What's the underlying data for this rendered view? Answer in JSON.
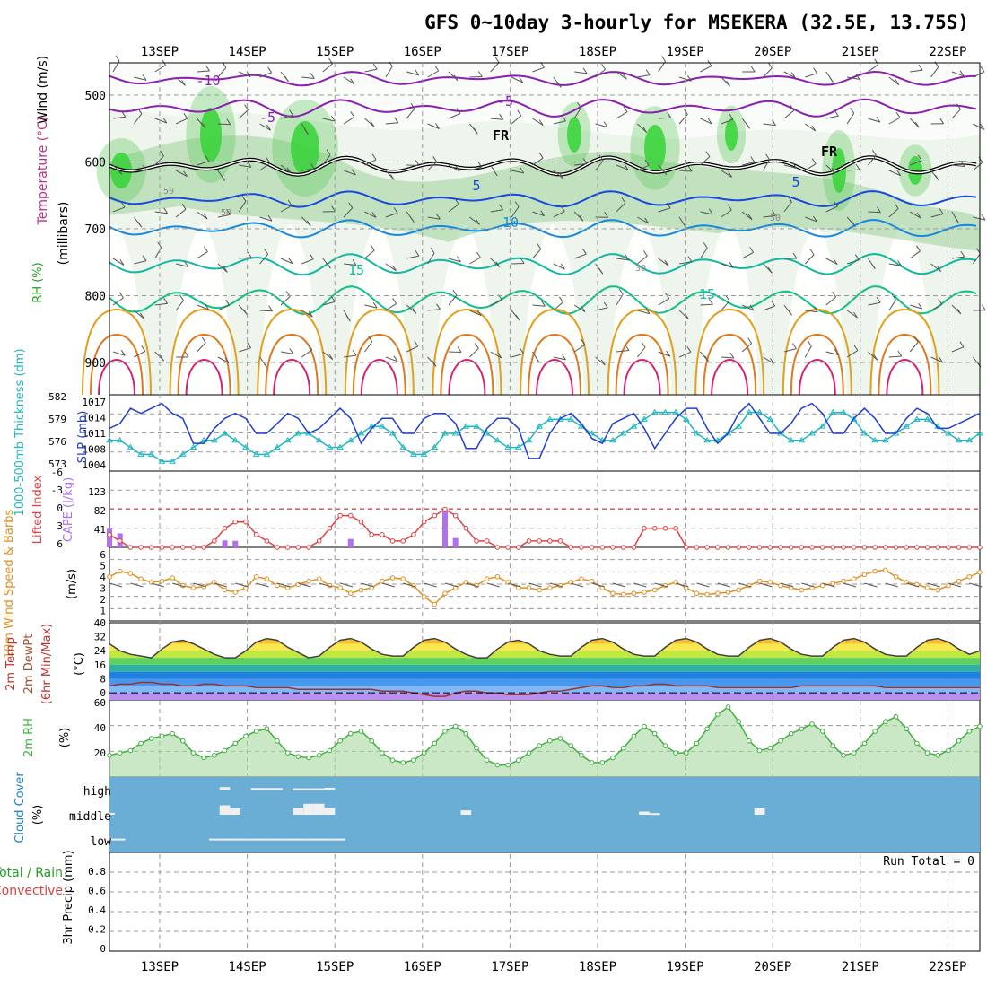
{
  "chart_data": {
    "type": "meteogram",
    "title": "GFS 0~10day 3-hourly for MSEKERA (32.5E, 13.75S)",
    "x_dates": [
      "13SEP",
      "14SEP",
      "15SEP",
      "16SEP",
      "17SEP",
      "18SEP",
      "19SEP",
      "20SEP",
      "21SEP",
      "22SEP"
    ],
    "colors": {
      "grid": "#999999",
      "blue_cloud": "#6aaed6",
      "slp": "#1f3fd0",
      "thick": "#20b8c0",
      "li": "#e04040",
      "cape": "#b070f0",
      "wind": "#e09020",
      "rh2m": "#40b040"
    },
    "upper_air": {
      "ylabel_wind": "Wind (m/s)",
      "ylabel_temp": "Temperature (°C)",
      "ylabel_rh": "RH (%)",
      "ylabel_p": "(millibars)",
      "p_ticks": [
        "500",
        "600",
        "700",
        "800",
        "900"
      ],
      "contour_labels": [
        "-10",
        "-5",
        "-5",
        "FR",
        "FR",
        "5",
        "5",
        "10",
        "15",
        "15",
        "50",
        "50",
        "50",
        "30"
      ]
    },
    "slp_panel": {
      "ylabel_thick": "1000-500mb Thickness (dm)",
      "ylabel_slp": "SLP (mb)",
      "thick_ticks": [
        "582",
        "579",
        "576",
        "573"
      ],
      "slp_ticks": [
        "1017",
        "1014",
        "1011",
        "1008",
        "1004"
      ],
      "slp_values": [
        1012,
        1013,
        1016,
        1015,
        1016,
        1017,
        1015,
        1014,
        1009,
        1009,
        1012,
        1014,
        1015,
        1014,
        1011,
        1011,
        1013,
        1015,
        1014,
        1011,
        1012,
        1014,
        1016,
        1014,
        1009,
        1012,
        1014,
        1014,
        1011,
        1011,
        1014,
        1015,
        1015,
        1013,
        1008,
        1008,
        1012,
        1014,
        1014,
        1012,
        1006,
        1006,
        1011,
        1014,
        1015,
        1013,
        1010,
        1009,
        1013,
        1014,
        1015,
        1012,
        1008,
        1011,
        1014,
        1016,
        1016,
        1012,
        1009,
        1011,
        1015,
        1017,
        1014,
        1011,
        1011,
        1013,
        1016,
        1017,
        1015,
        1011,
        1011,
        1014,
        1016,
        1014,
        1011,
        1011,
        1014,
        1016,
        1015,
        1012,
        1012,
        1013,
        1014,
        1015
      ],
      "thick_values": [
        576,
        576,
        575,
        574,
        574,
        573,
        573,
        574,
        575,
        576,
        576,
        577,
        576,
        575,
        574,
        574,
        575,
        576,
        577,
        577,
        576,
        575,
        575,
        576,
        577,
        578,
        578,
        577,
        575,
        574,
        574,
        575,
        577,
        577,
        578,
        578,
        577,
        576,
        575,
        575,
        576,
        578,
        579,
        579,
        579,
        578,
        577,
        576,
        576,
        577,
        578,
        579,
        580,
        580,
        580,
        579,
        577,
        576,
        576,
        577,
        578,
        580,
        580,
        579,
        577,
        576,
        576,
        577,
        578,
        580,
        580,
        579,
        577,
        576,
        576,
        577,
        578,
        579,
        579,
        578,
        577,
        576,
        576,
        577
      ]
    },
    "cape_panel": {
      "ylabel_li": "Lifted Index",
      "ylabel_cape": "CAPE (J/kg)",
      "li_ticks": [
        "-6",
        "-3",
        "0",
        "3",
        "6"
      ],
      "cape_ticks": [
        "123",
        "82",
        "41"
      ],
      "cape_values": [
        40,
        30,
        0,
        0,
        0,
        0,
        0,
        0,
        0,
        0,
        0,
        15,
        14,
        0,
        0,
        0,
        0,
        0,
        0,
        0,
        0,
        0,
        0,
        18,
        0,
        0,
        0,
        0,
        0,
        0,
        0,
        0,
        80,
        20,
        0,
        0,
        0,
        0,
        0,
        0,
        0,
        0,
        0,
        0,
        0,
        0,
        0,
        0,
        0,
        0,
        0,
        0,
        0,
        0,
        0,
        0,
        0,
        0,
        0,
        0,
        0,
        0,
        0,
        0,
        0,
        0,
        0,
        0,
        0,
        0,
        0,
        0,
        0,
        0,
        0,
        0,
        0,
        0,
        0,
        0,
        0,
        0,
        0,
        0
      ],
      "li_values": [
        4,
        5,
        6,
        6,
        6,
        6,
        6,
        6,
        6,
        6,
        5,
        3,
        2,
        2,
        4,
        5,
        6,
        6,
        6,
        6,
        5,
        3,
        1,
        1,
        2,
        4,
        4,
        5,
        5,
        4,
        2,
        1,
        0,
        1,
        3,
        5,
        5,
        6,
        6,
        6,
        5,
        5,
        5,
        5,
        6,
        6,
        6,
        6,
        6,
        6,
        6,
        3,
        3,
        3,
        3,
        6,
        6,
        6,
        6,
        6,
        6,
        6,
        6,
        6,
        6,
        6,
        6,
        6,
        6,
        6,
        6,
        6,
        6,
        6,
        6,
        6,
        6,
        6,
        6,
        6,
        6,
        6,
        6,
        6
      ]
    },
    "wind_panel": {
      "ylabel": "10m Wind Speed & Barbs",
      "yunit": "(m/s)",
      "ticks": [
        "6",
        "5",
        "4",
        "3",
        "2",
        "1"
      ],
      "values": [
        4,
        4.5,
        4.3,
        3.8,
        3.5,
        3.6,
        3.9,
        3.2,
        3.0,
        3.1,
        3.5,
        2.8,
        2.6,
        3.0,
        4.0,
        3.8,
        3.2,
        3.0,
        3.3,
        3.6,
        3.8,
        3.2,
        3.0,
        2.5,
        2.8,
        3.0,
        3.6,
        3.9,
        3.8,
        3.2,
        2.2,
        1.5,
        2.5,
        3.0,
        3.5,
        3.2,
        3.8,
        4.0,
        3.5,
        3.0,
        3.0,
        2.8,
        3.0,
        3.2,
        3.5,
        3.8,
        3.6,
        3.0,
        2.5,
        2.4,
        2.5,
        2.6,
        2.8,
        3.2,
        3.5,
        3.0,
        2.5,
        2.4,
        2.5,
        2.6,
        2.8,
        3.2,
        3.6,
        3.5,
        3.2,
        3.0,
        2.8,
        3.0,
        3.2,
        3.4,
        3.6,
        3.8,
        4.2,
        4.5,
        4.6,
        4.0,
        3.5,
        3.3,
        3.0,
        2.8,
        3.2,
        3.6,
        4.0,
        4.4
      ]
    },
    "temp_panel": {
      "ylabel_1": "2m Temp",
      "ylabel_2": "2m DewPt",
      "ylabel_3": "(6hr Min/Max)",
      "yunit": "(°C)",
      "ticks": [
        "40",
        "32",
        "24",
        "16",
        "8",
        "0"
      ],
      "temp_values": [
        28,
        24,
        22,
        21,
        20,
        25,
        29,
        30,
        28,
        25,
        22,
        20,
        20,
        24,
        29,
        31,
        30,
        26,
        23,
        20,
        21,
        26,
        30,
        31,
        29,
        25,
        22,
        21,
        21,
        26,
        30,
        31,
        29,
        25,
        22,
        20,
        20,
        25,
        29,
        30,
        28,
        24,
        22,
        21,
        21,
        26,
        30,
        31,
        29,
        25,
        22,
        21,
        21,
        26,
        30,
        31,
        29,
        25,
        22,
        21,
        21,
        26,
        30,
        31,
        29,
        25,
        22,
        21,
        21,
        26,
        30,
        31,
        29,
        25,
        22,
        21,
        21,
        26,
        30,
        31,
        29,
        25,
        22,
        24
      ],
      "dew_values": [
        4,
        5,
        5,
        6,
        6,
        5,
        5,
        4,
        4,
        5,
        5,
        4,
        4,
        4,
        3,
        3,
        3,
        3,
        2,
        2,
        2,
        2,
        2,
        2,
        2,
        2,
        1,
        1,
        1,
        0,
        -1,
        -2,
        -2,
        0,
        1,
        1,
        0,
        0,
        -1,
        -1,
        -1,
        0,
        1,
        1,
        2,
        3,
        4,
        4,
        3,
        3,
        4,
        4,
        5,
        5,
        4,
        4,
        4,
        4,
        3,
        3,
        3,
        3,
        3,
        3,
        3,
        3,
        4,
        4,
        4,
        4,
        4,
        4,
        4,
        4,
        3,
        3,
        3,
        3,
        3,
        3,
        3,
        3,
        3,
        3
      ]
    },
    "rh_panel": {
      "ylabel": "2m RH",
      "yunit": "(%)",
      "ticks": [
        "60",
        "40",
        "20"
      ],
      "values": [
        18,
        20,
        22,
        28,
        32,
        34,
        36,
        30,
        20,
        16,
        18,
        22,
        28,
        34,
        38,
        40,
        30,
        20,
        17,
        16,
        18,
        22,
        30,
        36,
        38,
        30,
        20,
        14,
        12,
        14,
        20,
        28,
        38,
        42,
        36,
        24,
        14,
        10,
        10,
        14,
        20,
        26,
        30,
        32,
        26,
        18,
        12,
        12,
        16,
        24,
        34,
        42,
        36,
        26,
        20,
        20,
        28,
        40,
        52,
        58,
        46,
        30,
        22,
        24,
        30,
        36,
        40,
        44,
        38,
        26,
        18,
        20,
        28,
        38,
        46,
        50,
        40,
        28,
        20,
        18,
        22,
        30,
        38,
        42
      ]
    },
    "cloud_panel": {
      "ylabel": "Cloud Cover",
      "yunit": "(%)",
      "ticks": [
        "high",
        "middle",
        "low"
      ],
      "high_values": [
        0,
        0,
        0,
        0,
        0,
        0,
        0,
        0,
        0,
        0,
        0,
        8,
        0,
        0,
        5,
        5,
        5,
        0,
        4,
        4,
        4,
        6,
        0,
        0,
        0,
        0,
        0,
        0,
        0,
        0,
        0,
        0,
        0,
        0,
        0,
        0,
        0,
        0,
        0,
        0,
        0,
        0,
        0,
        0,
        0,
        0,
        0,
        0,
        0,
        0,
        0,
        0,
        0,
        0,
        0,
        0,
        0,
        0,
        0,
        0,
        0,
        0,
        0,
        0,
        0,
        0,
        0,
        0,
        0,
        0,
        0,
        0,
        0,
        0,
        0,
        0,
        0,
        0,
        0,
        0,
        0,
        0,
        0,
        0
      ],
      "mid_values": [
        6,
        0,
        0,
        0,
        0,
        0,
        0,
        0,
        0,
        0,
        0,
        30,
        20,
        0,
        0,
        0,
        0,
        0,
        22,
        35,
        35,
        22,
        0,
        0,
        0,
        0,
        0,
        0,
        0,
        0,
        0,
        0,
        0,
        0,
        14,
        0,
        0,
        0,
        0,
        0,
        0,
        0,
        0,
        0,
        0,
        0,
        0,
        0,
        0,
        0,
        0,
        10,
        5,
        0,
        0,
        0,
        0,
        0,
        0,
        0,
        0,
        0,
        20,
        0,
        0,
        0,
        0,
        0,
        0,
        0,
        0,
        0,
        0,
        0,
        0,
        0,
        0,
        0,
        0,
        0,
        0,
        0,
        0,
        0
      ],
      "low_values": [
        4,
        4,
        0,
        0,
        0,
        0,
        0,
        0,
        0,
        0,
        4,
        4,
        4,
        4,
        4,
        4,
        4,
        4,
        4,
        4,
        4,
        4,
        4,
        0,
        0,
        0,
        0,
        0,
        0,
        0,
        0,
        0,
        0,
        0,
        0,
        0,
        0,
        0,
        0,
        0,
        0,
        0,
        0,
        0,
        0,
        0,
        0,
        0,
        0,
        0,
        0,
        0,
        0,
        0,
        0,
        0,
        0,
        0,
        0,
        0,
        0,
        0,
        0,
        0,
        0,
        0,
        0,
        0,
        0,
        0,
        0,
        0,
        0,
        0,
        0,
        0,
        0,
        0,
        0,
        0,
        0,
        0,
        0,
        0
      ]
    },
    "precip_panel": {
      "ylabel_1": "Total / Rain",
      "ylabel_2": "Convective",
      "ylabel_3": "3hr Precip (mm)",
      "ticks": [
        "0.8",
        "0.6",
        "0.4",
        "0.2",
        "0"
      ],
      "run_total": "Run Total = 0"
    }
  }
}
